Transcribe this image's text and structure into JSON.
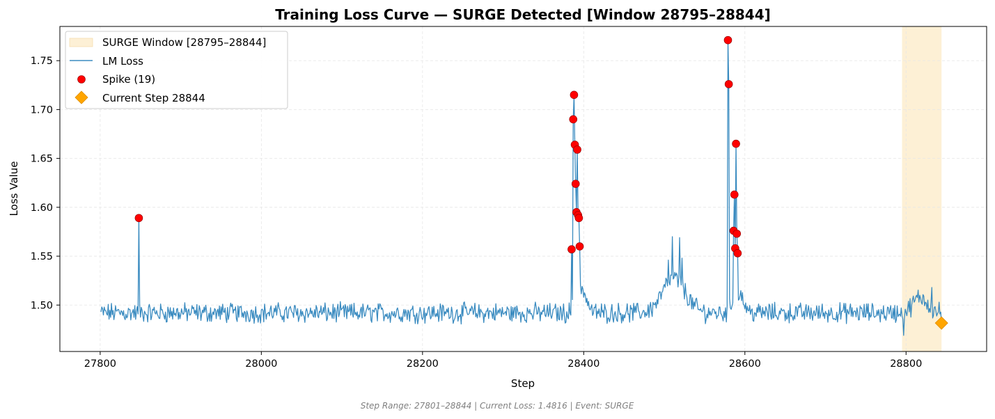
{
  "chart_data": {
    "type": "line",
    "title": "Training Loss Curve — SURGE Detected [Window 28795–28844]",
    "xlabel": "Step",
    "ylabel": "Loss Value",
    "xlim": [
      27750,
      28900
    ],
    "ylim": [
      1.4525,
      1.785
    ],
    "xticks": [
      27800,
      28000,
      28200,
      28400,
      28600,
      28800
    ],
    "yticks": [
      1.5,
      1.55,
      1.6,
      1.65,
      1.7,
      1.75
    ],
    "ytick_labels": [
      "1.50",
      "1.55",
      "1.60",
      "1.65",
      "1.70",
      "1.75"
    ],
    "grid": true,
    "legend_position": "top-left",
    "x_range": [
      27801,
      28844
    ],
    "surge_window": {
      "label": "SURGE Window [28795–28844]",
      "start": 28795,
      "end": 28844,
      "color": "#fdf0d5"
    },
    "loss_series": {
      "name": "LM Loss",
      "color": "#3a8bc0",
      "baseline": 1.492,
      "bumps": [
        {
          "center": 28397,
          "height": 0.026,
          "width": 6
        },
        {
          "center": 28512,
          "height": 0.035,
          "width": 14
        },
        {
          "center": 28592,
          "height": 0.022,
          "width": 6
        },
        {
          "center": 28818,
          "height": 0.016,
          "width": 9
        }
      ],
      "spikes": [
        {
          "x": 27848,
          "y": 1.589
        },
        {
          "x": 28505,
          "y": 1.546
        },
        {
          "x": 28510,
          "y": 1.57
        },
        {
          "x": 28519,
          "y": 1.569
        },
        {
          "x": 28522,
          "y": 1.548
        },
        {
          "x": 28832,
          "y": 1.518
        },
        {
          "x": 28797,
          "y": 1.469
        }
      ]
    },
    "spike_points": {
      "name": "Spike (19)",
      "color": "#ff0000",
      "points": [
        {
          "x": 27848,
          "y": 1.589
        },
        {
          "x": 28385,
          "y": 1.557
        },
        {
          "x": 28387,
          "y": 1.69
        },
        {
          "x": 28388,
          "y": 1.715
        },
        {
          "x": 28389,
          "y": 1.664
        },
        {
          "x": 28390,
          "y": 1.624
        },
        {
          "x": 28391,
          "y": 1.595
        },
        {
          "x": 28392,
          "y": 1.659
        },
        {
          "x": 28393,
          "y": 1.592
        },
        {
          "x": 28394,
          "y": 1.589
        },
        {
          "x": 28395,
          "y": 1.56
        },
        {
          "x": 28579,
          "y": 1.771
        },
        {
          "x": 28580,
          "y": 1.726
        },
        {
          "x": 28586,
          "y": 1.576
        },
        {
          "x": 28587,
          "y": 1.613
        },
        {
          "x": 28588,
          "y": 1.558
        },
        {
          "x": 28589,
          "y": 1.665
        },
        {
          "x": 28590,
          "y": 1.573
        },
        {
          "x": 28591,
          "y": 1.553
        }
      ]
    },
    "current_step": {
      "label": "Current Step 28844",
      "x": 28844,
      "y": 1.4816,
      "color": "#ffa500"
    },
    "legend": [
      {
        "key": "surge",
        "label": "SURGE Window [28795–28844]"
      },
      {
        "key": "loss",
        "label": "LM Loss"
      },
      {
        "key": "spike",
        "label": "Spike (19)"
      },
      {
        "key": "current",
        "label": "Current Step 28844"
      }
    ],
    "footer": "Step Range: 27801–28844 | Current Loss: 1.4816 | Event: SURGE"
  }
}
